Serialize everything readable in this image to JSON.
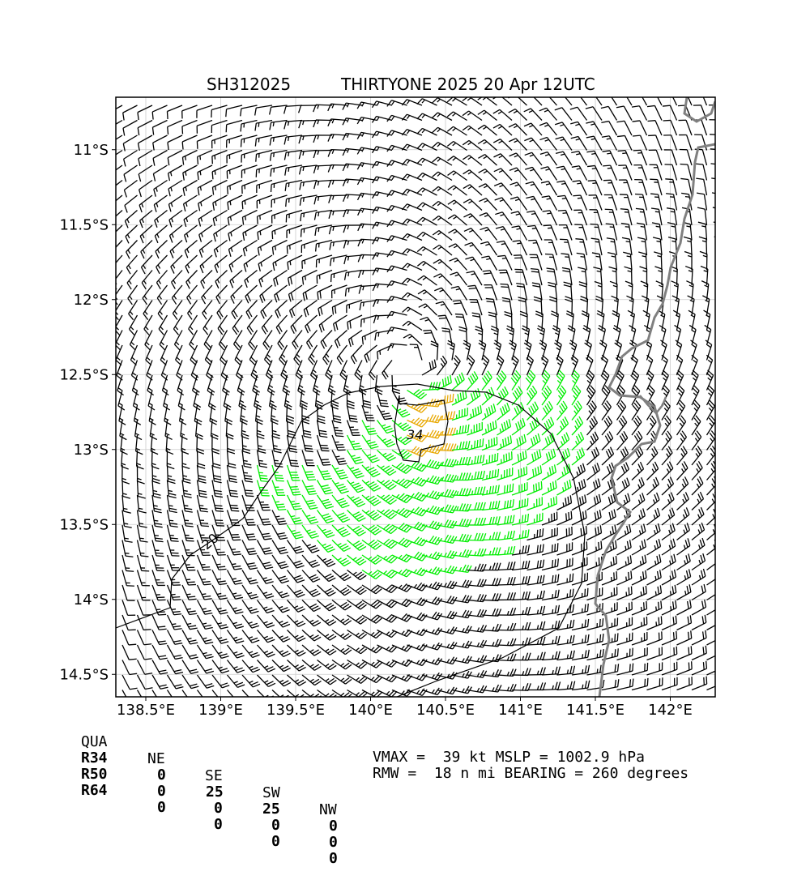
{
  "title_left": "SH312025",
  "title_right": "THIRTYONE 2025 20 Apr 12UTC",
  "axes": {
    "lon_ticks": [
      "138.5°E",
      "139°E",
      "139.5°E",
      "140°E",
      "140.5°E",
      "141°E",
      "141.5°E",
      "142°E"
    ],
    "lat_ticks": [
      "11°S",
      "11.5°S",
      "12°S",
      "12.5°S",
      "13°S",
      "13.5°S",
      "14°S",
      "14.5°S"
    ],
    "lon_range": [
      138.5,
      142.0
    ],
    "lat_range": [
      -14.5,
      -11.0
    ],
    "grid": true
  },
  "contour_labels": {
    "c34": "34",
    "c20": "20"
  },
  "colors": {
    "barb_default": "#000000",
    "barb_34kt": "#00ee00",
    "barb_50kt": "#e8a800",
    "coastline": "#808080",
    "grid": "#cccccc"
  },
  "storm": {
    "center_lon": 140.28,
    "center_lat": -12.45
  },
  "wind_radii": {
    "header": [
      "QUA",
      "NE",
      "SE",
      "SW",
      "NW"
    ],
    "rows": [
      [
        "R34",
        "0",
        "25",
        "25",
        "0"
      ],
      [
        "R50",
        "0",
        "0",
        "0",
        "0"
      ],
      [
        "R64",
        "0",
        "0",
        "0",
        "0"
      ]
    ]
  },
  "info": {
    "line1": "VMAX =  39 kt MSLP = 1002.9 hPa",
    "line2": "RMW =  18 n mi BEARING = 260 degrees"
  }
}
